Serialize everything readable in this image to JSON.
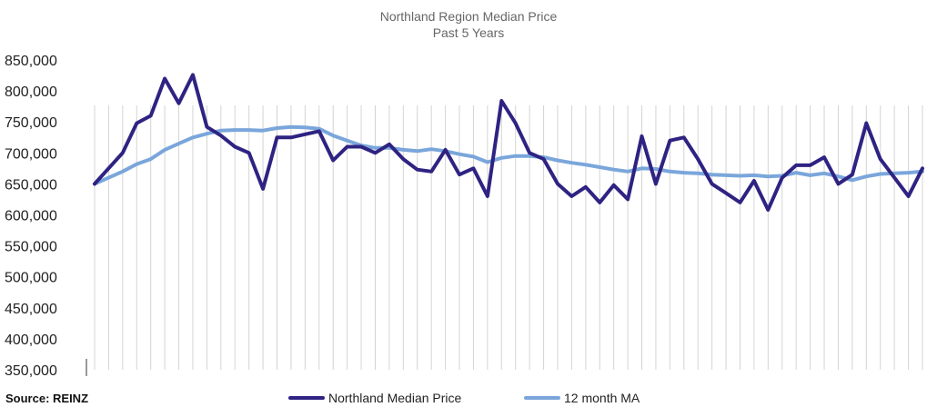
{
  "chart_data": {
    "type": "line",
    "title": "Northland Region Median Price",
    "subtitle": "Past 5 Years",
    "ylim": [
      350000,
      850000
    ],
    "yticks": [
      850000,
      800000,
      750000,
      700000,
      650000,
      600000,
      550000,
      500000,
      450000,
      400000,
      350000
    ],
    "ytick_labels": [
      "850,000",
      "800,000",
      "750,000",
      "700,000",
      "650,000",
      "600,000",
      "550,000",
      "500,000",
      "450,000",
      "400,000",
      "350,000"
    ],
    "grid": "vertical",
    "legend_position": "bottom",
    "series": [
      {
        "name": "Northland Median Price",
        "color": "#2e2382",
        "values": [
          650000,
          675000,
          700000,
          748000,
          760000,
          820000,
          780000,
          826000,
          742000,
          728000,
          710000,
          700000,
          642000,
          725000,
          725000,
          730000,
          735000,
          688000,
          710000,
          710000,
          700000,
          714000,
          690000,
          673000,
          670000,
          705000,
          665000,
          675000,
          630000,
          784000,
          748000,
          700000,
          690000,
          650000,
          630000,
          645000,
          620000,
          648000,
          625000,
          727000,
          650000,
          720000,
          725000,
          690000,
          650000,
          635000,
          620000,
          655000,
          608000,
          660000,
          680000,
          680000,
          693000,
          650000,
          665000,
          748000,
          690000,
          660000,
          630000,
          675000
        ]
      },
      {
        "name": "12 month MA",
        "color": "#7aa6db",
        "values": [
          650000,
          660000,
          670000,
          682000,
          690000,
          705000,
          715000,
          725000,
          731000,
          736000,
          737000,
          737000,
          736000,
          740000,
          742000,
          741000,
          739000,
          728000,
          720000,
          712000,
          708000,
          708000,
          705000,
          703000,
          706000,
          703000,
          698000,
          694000,
          685000,
          692000,
          695000,
          695000,
          693000,
          688000,
          684000,
          681000,
          677000,
          673000,
          670000,
          675000,
          674000,
          670000,
          668000,
          667000,
          665000,
          664000,
          663000,
          664000,
          662000,
          663000,
          668000,
          664000,
          667000,
          662000,
          656000,
          662000,
          666000,
          667000,
          668000,
          670000
        ]
      }
    ]
  },
  "source": "Source: REINZ"
}
